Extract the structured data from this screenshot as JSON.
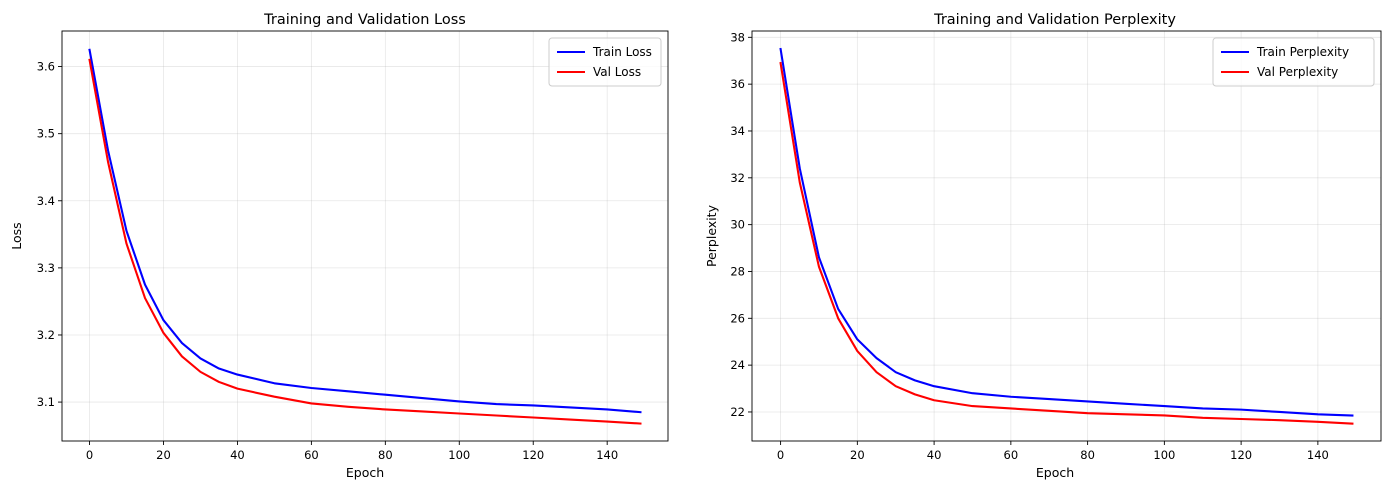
{
  "chart_data": [
    {
      "type": "line",
      "title": "Training and Validation Loss",
      "xlabel": "Epoch",
      "ylabel": "Loss",
      "xlim": [
        -7.45,
        156.45
      ],
      "ylim": [
        3.042,
        3.653
      ],
      "xticks": [
        0,
        20,
        40,
        60,
        80,
        100,
        120,
        140
      ],
      "yticks": [
        3.1,
        3.2,
        3.3,
        3.4,
        3.5,
        3.6
      ],
      "tick_decimals": 1,
      "grid": true,
      "legend_position": "top-right",
      "x": [
        0,
        5,
        10,
        15,
        20,
        25,
        30,
        35,
        40,
        50,
        60,
        70,
        80,
        90,
        100,
        110,
        120,
        130,
        140,
        149
      ],
      "series": [
        {
          "name": "Train Loss",
          "color": "#0000ff",
          "values": [
            3.625,
            3.475,
            3.355,
            3.275,
            3.222,
            3.188,
            3.165,
            3.15,
            3.141,
            3.128,
            3.121,
            3.116,
            3.111,
            3.106,
            3.101,
            3.097,
            3.095,
            3.092,
            3.089,
            3.085
          ]
        },
        {
          "name": "Val Loss",
          "color": "#ff0000",
          "values": [
            3.61,
            3.458,
            3.336,
            3.255,
            3.203,
            3.168,
            3.145,
            3.13,
            3.12,
            3.108,
            3.098,
            3.093,
            3.089,
            3.086,
            3.083,
            3.08,
            3.077,
            3.074,
            3.071,
            3.068
          ]
        }
      ]
    },
    {
      "type": "line",
      "title": "Training and Validation Perplexity",
      "xlabel": "Epoch",
      "ylabel": "Perplexity",
      "xlim": [
        -7.45,
        156.45
      ],
      "ylim": [
        20.76,
        38.27
      ],
      "xticks": [
        0,
        20,
        40,
        60,
        80,
        100,
        120,
        140
      ],
      "yticks": [
        22,
        24,
        26,
        28,
        30,
        32,
        34,
        36,
        38
      ],
      "tick_decimals": 0,
      "grid": true,
      "legend_position": "top-right",
      "x": [
        0,
        5,
        10,
        15,
        20,
        25,
        30,
        35,
        40,
        50,
        60,
        70,
        80,
        90,
        100,
        110,
        120,
        130,
        140,
        149
      ],
      "series": [
        {
          "name": "Train Perplexity",
          "color": "#0000ff",
          "values": [
            37.5,
            32.4,
            28.6,
            26.4,
            25.1,
            24.3,
            23.7,
            23.35,
            23.1,
            22.8,
            22.65,
            22.55,
            22.45,
            22.35,
            22.25,
            22.15,
            22.1,
            22.0,
            21.9,
            21.85
          ]
        },
        {
          "name": "Val Perplexity",
          "color": "#ff0000",
          "values": [
            36.9,
            31.8,
            28.2,
            26.0,
            24.6,
            23.7,
            23.1,
            22.75,
            22.5,
            22.25,
            22.15,
            22.05,
            21.95,
            21.9,
            21.85,
            21.75,
            21.7,
            21.65,
            21.58,
            21.5
          ]
        }
      ]
    }
  ]
}
